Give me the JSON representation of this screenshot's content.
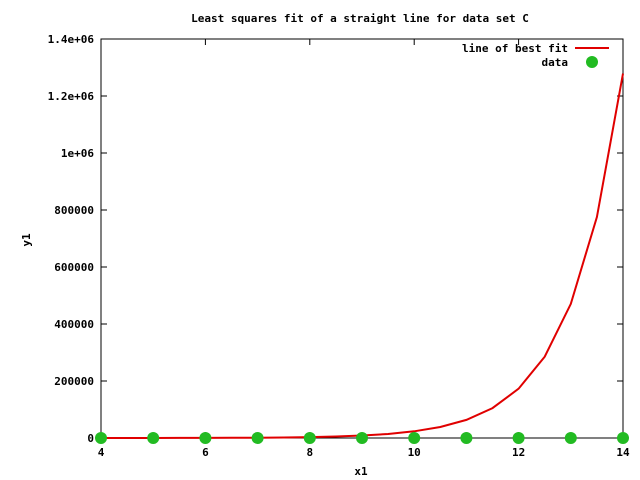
{
  "chart_data": {
    "type": "line",
    "title": "Least squares fit of a straight line for data set C",
    "xlabel": "x1",
    "ylabel": "y1",
    "xlim": [
      4,
      14
    ],
    "ylim": [
      0,
      1400000
    ],
    "x_ticks": [
      4,
      6,
      8,
      10,
      12,
      14
    ],
    "x_tick_labels": [
      "4",
      "6",
      "8",
      "10",
      "12",
      "14"
    ],
    "y_ticks": [
      0,
      200000,
      400000,
      600000,
      800000,
      1000000,
      1200000,
      1400000
    ],
    "y_tick_labels": [
      "0",
      "200000",
      "400000",
      "600000",
      "800000",
      "1e+06",
      "1.2e+06",
      "1.4e+06"
    ],
    "grid": false,
    "legend_position": "top-right",
    "series": [
      {
        "name": "line of best fit",
        "kind": "line",
        "color": "#e00000",
        "x": [
          4,
          4.5,
          5,
          5.5,
          6,
          6.5,
          7,
          7.5,
          8,
          8.5,
          9,
          9.5,
          10,
          10.5,
          11,
          11.5,
          12,
          12.5,
          13,
          13.5,
          14
        ],
        "y": [
          58,
          96,
          158,
          260,
          429,
          707,
          1166,
          1922,
          3169,
          5226,
          8616,
          14205,
          23420,
          38613,
          63662,
          104961,
          173052,
          285314,
          470404,
          775569,
          1278700
        ]
      },
      {
        "name": "data",
        "kind": "points",
        "color": "#22bb22",
        "x": [
          4,
          5,
          6,
          7,
          8,
          9,
          10,
          11,
          12,
          13,
          14
        ],
        "y": [
          0,
          0,
          0,
          0,
          0,
          0,
          0,
          0,
          0,
          0,
          0
        ]
      }
    ]
  }
}
